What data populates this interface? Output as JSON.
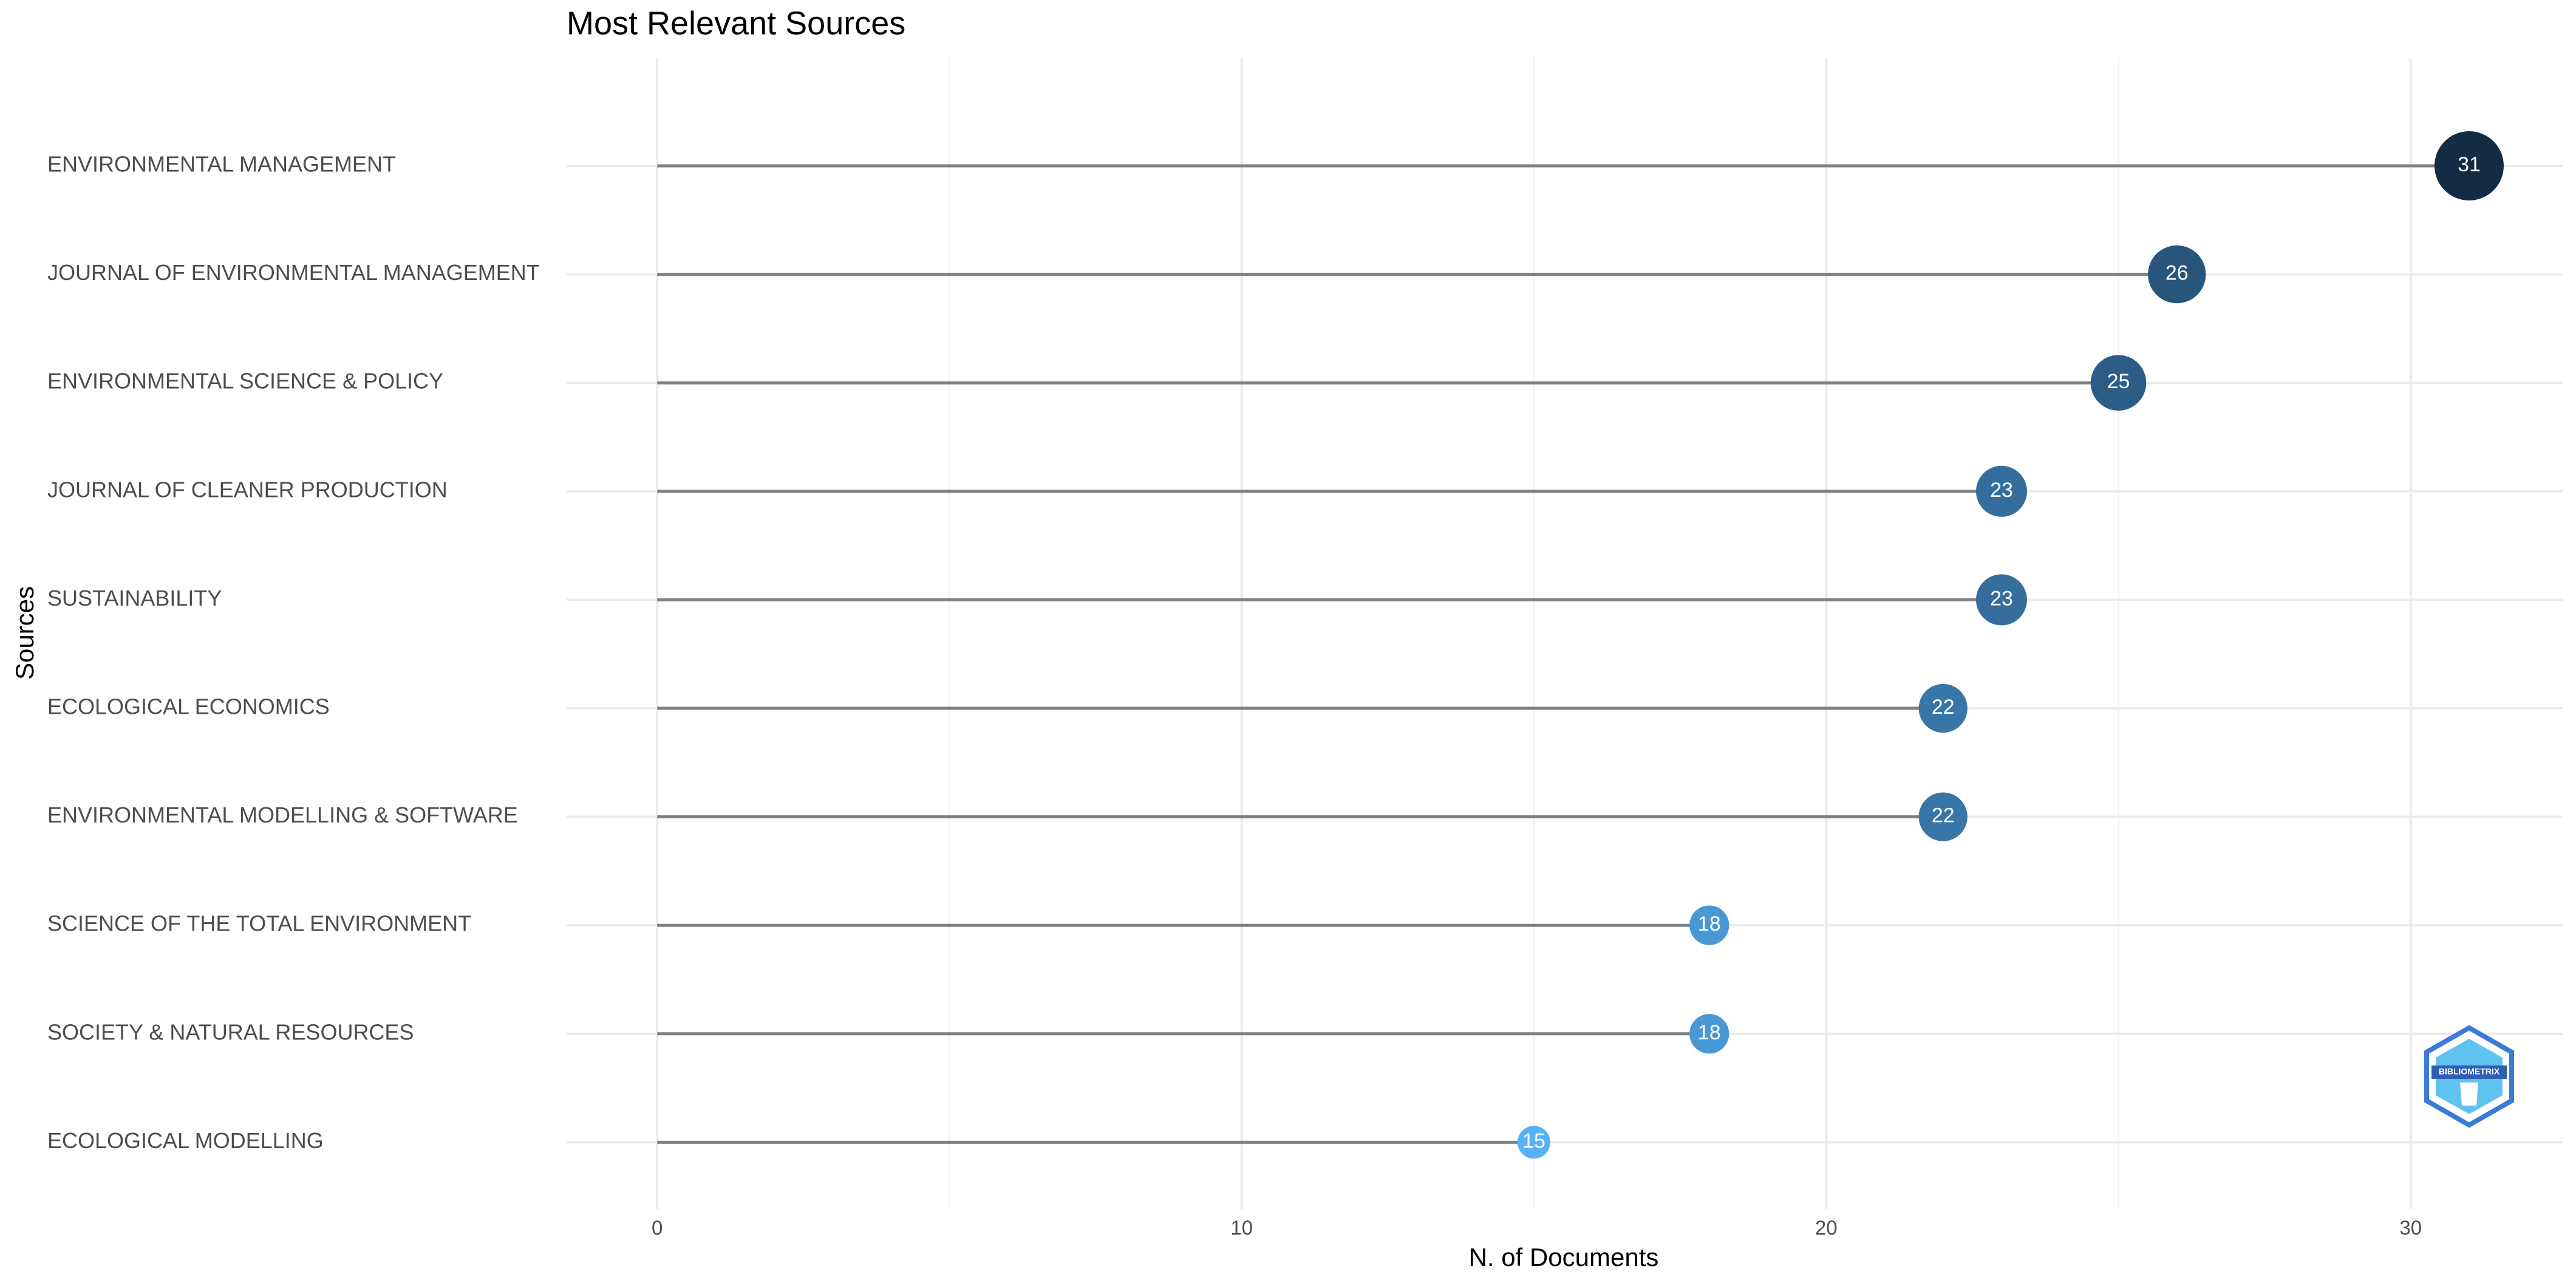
{
  "chart_data": {
    "type": "lollipop",
    "title": "Most Relevant Sources",
    "x_label": "N. of Documents",
    "y_label": "Sources",
    "categories": [
      "ENVIRONMENTAL MANAGEMENT",
      "JOURNAL OF ENVIRONMENTAL MANAGEMENT",
      "ENVIRONMENTAL SCIENCE & POLICY",
      "JOURNAL OF CLEANER PRODUCTION",
      "SUSTAINABILITY",
      "ECOLOGICAL ECONOMICS",
      "ENVIRONMENTAL MODELLING & SOFTWARE",
      "SCIENCE OF THE TOTAL ENVIRONMENT",
      "SOCIETY & NATURAL RESOURCES",
      "ECOLOGICAL MODELLING"
    ],
    "values": [
      31,
      26,
      25,
      23,
      23,
      22,
      22,
      18,
      18,
      15
    ],
    "color_low": "#56b1f7",
    "color_high": "#132b43",
    "stem_color": "#808080",
    "xlim": [
      -1.55,
      32.6
    ],
    "xticks": [
      0,
      10,
      20,
      30
    ],
    "grid": true,
    "logo": "BIBLIOMETRIX"
  }
}
